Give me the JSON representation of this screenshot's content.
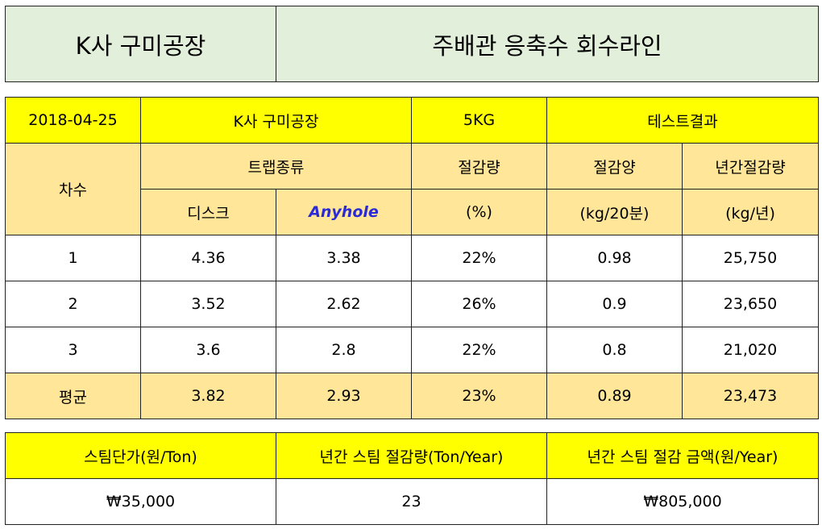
{
  "header": {
    "company": "K사 구미공장",
    "line": "주배관 응축수 회수라인"
  },
  "info": {
    "date": "2018-04-25",
    "company": "K사 구미공장",
    "weight": "5KG",
    "result": "테스트결과"
  },
  "headers": {
    "round": "차수",
    "trap_type": "트랩종류",
    "disc": "디스크",
    "anyhole": "Anyhole",
    "saving_rate": "절감량",
    "saving_rate_unit": "(%)",
    "saving_amount": "절감양",
    "saving_amount_unit": "(kg/20분)",
    "annual_saving": "년간절감량",
    "annual_saving_unit": "(kg/년)"
  },
  "rows": [
    {
      "round": "1",
      "disc": "4.36",
      "anyhole": "3.38",
      "rate": "22%",
      "amount": "0.98",
      "annual": "25,750"
    },
    {
      "round": "2",
      "disc": "3.52",
      "anyhole": "2.62",
      "rate": "26%",
      "amount": "0.9",
      "annual": "23,650"
    },
    {
      "round": "3",
      "disc": "3.6",
      "anyhole": "2.8",
      "rate": "22%",
      "amount": "0.8",
      "annual": "21,020"
    }
  ],
  "average": {
    "label": "평균",
    "disc": "3.82",
    "anyhole": "2.93",
    "rate": "23%",
    "amount": "0.89",
    "annual": "23,473"
  },
  "summary": {
    "steam_price_label": "스팀단가(원/Ton)",
    "annual_steam_saving_label": "년간 스팀 절감량(Ton/Year)",
    "annual_saving_value_label": "년간 스팀 절감 금액(원/Year)",
    "steam_price": "₩35,000",
    "annual_steam_saving": "23",
    "annual_saving_value": "₩805,000"
  },
  "colors": {
    "header_bg": "#e2efda",
    "highlight_yellow": "#ffff00",
    "tan": "#ffe699",
    "anyhole_text": "#2b2bd6"
  }
}
